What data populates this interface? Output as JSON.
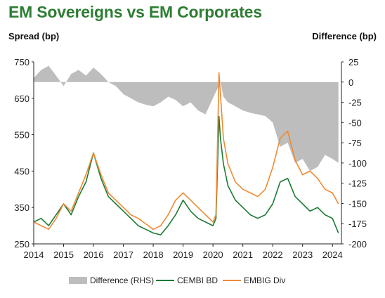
{
  "chart_data": {
    "type": "line",
    "title": "EM Sovereigns vs EM Corporates",
    "ylabel_left": "Spread (bp)",
    "ylabel_right": "Difference (bp)",
    "x_ticks": [
      "2014",
      "2015",
      "2016",
      "2017",
      "2018",
      "2019",
      "2020",
      "2021",
      "2022",
      "2023",
      "2024"
    ],
    "y_left": {
      "min": 250,
      "max": 750,
      "ticks": [
        250,
        350,
        450,
        550,
        650,
        750
      ]
    },
    "y_right": {
      "min": -200,
      "max": 25,
      "ticks": [
        -200,
        -175,
        -150,
        -125,
        -100,
        -75,
        -50,
        -25,
        0,
        25
      ]
    },
    "legend_position": "bottom",
    "series": [
      {
        "name": "Difference (RHS)",
        "type": "area",
        "axis": "right",
        "color": "#bdbdbd",
        "x": [
          2014.0,
          2014.25,
          2014.5,
          2014.75,
          2015.0,
          2015.25,
          2015.5,
          2015.75,
          2016.0,
          2016.25,
          2016.5,
          2016.75,
          2017.0,
          2017.25,
          2017.5,
          2017.75,
          2018.0,
          2018.25,
          2018.5,
          2018.75,
          2019.0,
          2019.25,
          2019.5,
          2019.75,
          2020.0,
          2020.1,
          2020.2,
          2020.25,
          2020.35,
          2020.5,
          2020.75,
          2021.0,
          2021.25,
          2021.5,
          2021.75,
          2022.0,
          2022.25,
          2022.5,
          2022.75,
          2023.0,
          2023.25,
          2023.5,
          2023.75,
          2024.0,
          2024.2
        ],
        "y": [
          5,
          15,
          20,
          8,
          -5,
          10,
          15,
          8,
          18,
          10,
          0,
          -5,
          -15,
          -20,
          -25,
          -28,
          -30,
          -25,
          -18,
          -22,
          -30,
          -25,
          -35,
          -40,
          -20,
          -12,
          -5,
          0,
          -18,
          -25,
          -30,
          -35,
          -38,
          -40,
          -42,
          -50,
          -80,
          -75,
          -100,
          -95,
          -110,
          -105,
          -90,
          -95,
          -100
        ]
      },
      {
        "name": "CEMBI BD",
        "type": "line",
        "axis": "left",
        "color": "#1b7a33",
        "x": [
          2014.0,
          2014.25,
          2014.5,
          2014.75,
          2015.0,
          2015.25,
          2015.5,
          2015.75,
          2016.0,
          2016.25,
          2016.5,
          2016.75,
          2017.0,
          2017.25,
          2017.5,
          2017.75,
          2018.0,
          2018.25,
          2018.5,
          2018.75,
          2019.0,
          2019.25,
          2019.5,
          2019.75,
          2020.0,
          2020.1,
          2020.2,
          2020.25,
          2020.35,
          2020.5,
          2020.75,
          2021.0,
          2021.25,
          2021.5,
          2021.75,
          2022.0,
          2022.25,
          2022.5,
          2022.75,
          2023.0,
          2023.25,
          2023.5,
          2023.75,
          2024.0,
          2024.2
        ],
        "y": [
          310,
          320,
          300,
          330,
          360,
          330,
          380,
          420,
          500,
          430,
          380,
          360,
          340,
          320,
          300,
          290,
          280,
          275,
          300,
          330,
          370,
          340,
          320,
          310,
          300,
          320,
          600,
          540,
          470,
          410,
          370,
          350,
          330,
          320,
          330,
          360,
          420,
          430,
          380,
          360,
          340,
          350,
          330,
          320,
          280
        ]
      },
      {
        "name": "EMBIG Div",
        "type": "line",
        "axis": "left",
        "color": "#ee8a33",
        "x": [
          2014.0,
          2014.25,
          2014.5,
          2014.75,
          2015.0,
          2015.25,
          2015.5,
          2015.75,
          2016.0,
          2016.25,
          2016.5,
          2016.75,
          2017.0,
          2017.25,
          2017.5,
          2017.75,
          2018.0,
          2018.25,
          2018.5,
          2018.75,
          2019.0,
          2019.25,
          2019.5,
          2019.75,
          2020.0,
          2020.1,
          2020.2,
          2020.25,
          2020.35,
          2020.5,
          2020.75,
          2021.0,
          2021.25,
          2021.5,
          2021.75,
          2022.0,
          2022.25,
          2022.5,
          2022.75,
          2023.0,
          2023.25,
          2023.5,
          2023.75,
          2024.0,
          2024.2
        ],
        "y": [
          310,
          300,
          290,
          320,
          360,
          340,
          390,
          440,
          500,
          440,
          390,
          370,
          350,
          330,
          320,
          305,
          290,
          300,
          330,
          370,
          390,
          370,
          350,
          330,
          310,
          330,
          720,
          660,
          540,
          470,
          420,
          400,
          390,
          380,
          400,
          460,
          540,
          560,
          480,
          440,
          450,
          430,
          400,
          390,
          360
        ]
      }
    ]
  }
}
